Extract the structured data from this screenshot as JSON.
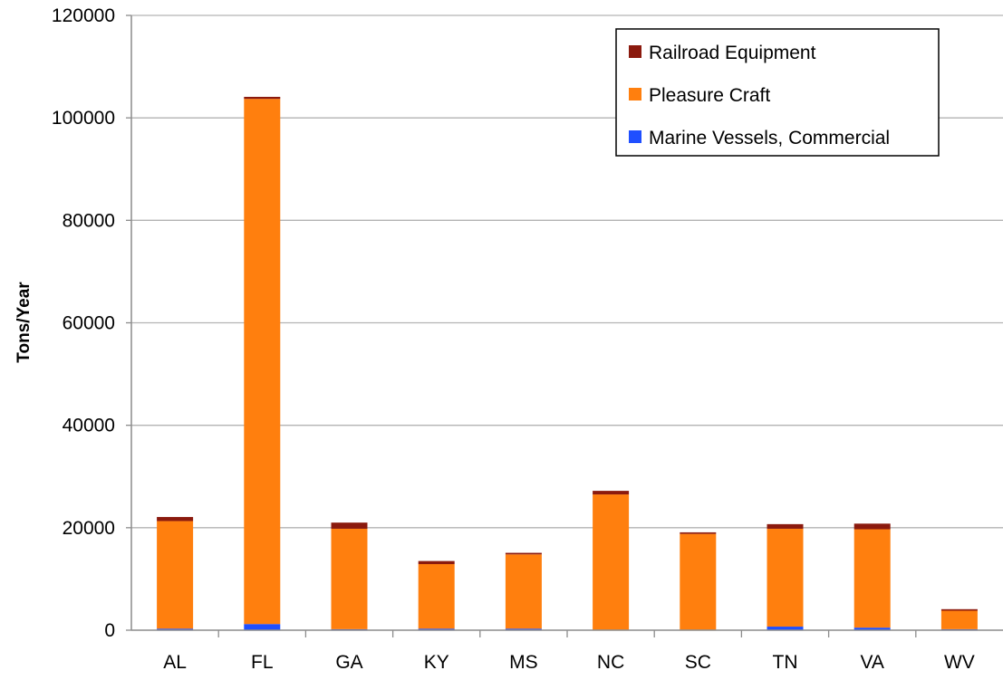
{
  "chart_data": {
    "type": "bar",
    "stacked": true,
    "title": "",
    "xlabel": "",
    "ylabel": "Tons/Year",
    "ylim": [
      0,
      120000
    ],
    "y_ticks": [
      "0",
      "20000",
      "40000",
      "60000",
      "80000",
      "100000",
      "120000"
    ],
    "grid": true,
    "legend_position": "top-right",
    "categories": [
      "AL",
      "FL",
      "GA",
      "KY",
      "MS",
      "NC",
      "SC",
      "TN",
      "VA",
      "WV"
    ],
    "series": [
      {
        "name": "Marine Vessels, Commercial",
        "color": "#1f4fff",
        "values": [
          300,
          1200,
          200,
          300,
          300,
          100,
          100,
          700,
          500,
          200
        ]
      },
      {
        "name": "Pleasure Craft",
        "color": "#ff7f0e",
        "values": [
          21000,
          102500,
          19600,
          12600,
          14500,
          26400,
          18700,
          19100,
          19200,
          3600
        ]
      },
      {
        "name": "Railroad Equipment",
        "color": "#8b1a0e",
        "values": [
          800,
          400,
          1200,
          600,
          300,
          700,
          300,
          900,
          1100,
          300
        ]
      }
    ],
    "legend_order": [
      "Railroad Equipment",
      "Pleasure Craft",
      "Marine Vessels, Commercial"
    ]
  }
}
